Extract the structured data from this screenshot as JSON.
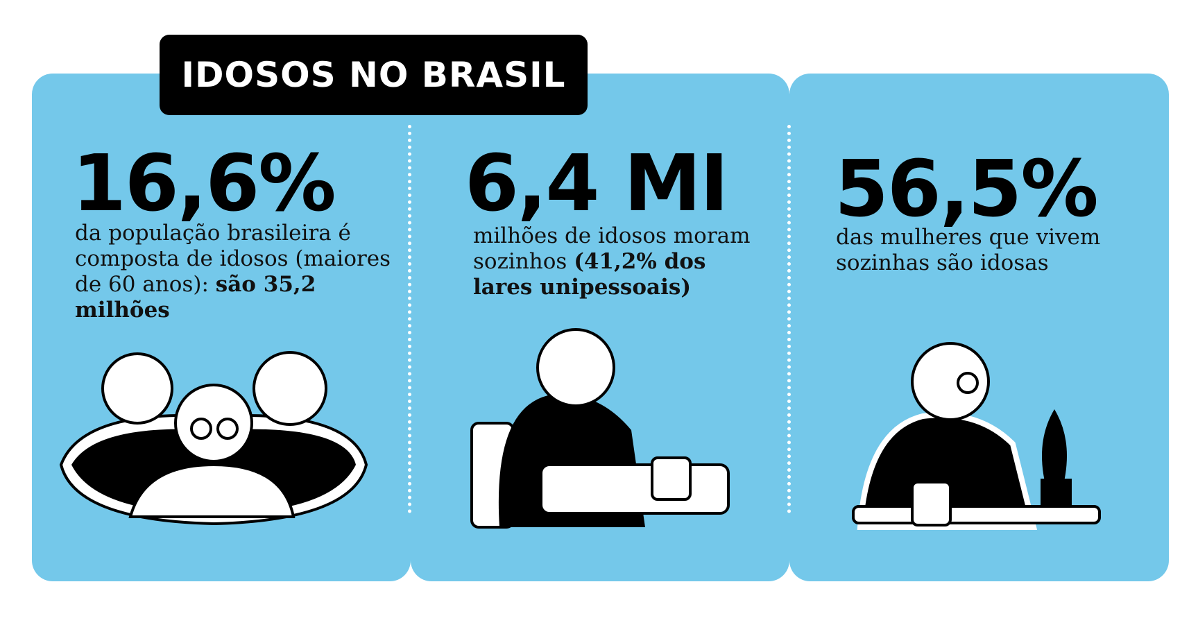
{
  "header": {
    "title": "IDOSOS NO BRASIL"
  },
  "panels": [
    {
      "stat": "16,6%",
      "text": "da população brasileira é composta de idosos (maiores de 60 anos): ",
      "bold": "são 35,2 milhões"
    },
    {
      "stat": "6,4 MI",
      "text": "milhões de idosos moram sozinhos ",
      "bold": "(41,2% dos lares unipessoais)"
    },
    {
      "stat": "56,5%",
      "text": "das mulheres que vivem sozinhas são idosas"
    }
  ]
}
